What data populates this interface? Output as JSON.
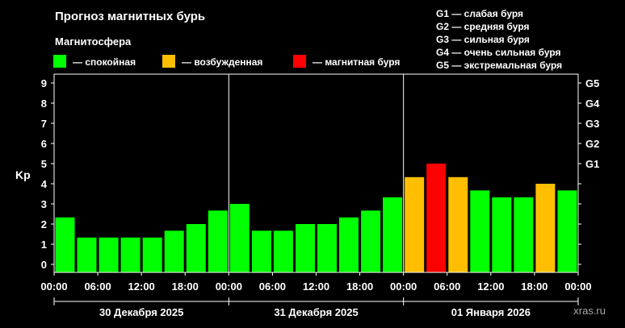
{
  "title": "Прогноз магнитных бурь",
  "subtitle": "Магнитосфера",
  "legend": [
    {
      "label": "— спокойная",
      "color": "#00ff00"
    },
    {
      "label": "— возбужденная",
      "color": "#ffbf00"
    },
    {
      "label": "— магнитная буря",
      "color": "#ff0000"
    }
  ],
  "g_scale": [
    "G1 — слабая буря",
    "G2 — средняя буря",
    "G3 — сильная буря",
    "G4 — очень сильная буря",
    "G5 — экстремальная буря"
  ],
  "watermark": "xras.ru",
  "chart_data": {
    "type": "bar",
    "ylabel": "Kp",
    "ylim": [
      0,
      9
    ],
    "y_ticks": [
      "0",
      "1",
      "2",
      "3",
      "4",
      "5",
      "6",
      "7",
      "8",
      "9"
    ],
    "right_ticks": [
      {
        "label": "G1",
        "value": 5
      },
      {
        "label": "G2",
        "value": 6
      },
      {
        "label": "G3",
        "value": 7
      },
      {
        "label": "G4",
        "value": 8
      },
      {
        "label": "G5",
        "value": 9
      }
    ],
    "x_ticks": [
      "00:00",
      "06:00",
      "12:00",
      "18:00",
      "00:00",
      "06:00",
      "12:00",
      "18:00",
      "00:00",
      "06:00",
      "12:00",
      "18:00",
      "00:00"
    ],
    "days": [
      "30 Декабря 2025",
      "31 Декабря 2025",
      "01 Января 2026"
    ],
    "values": [
      2.33,
      1.33,
      1.33,
      1.33,
      1.33,
      1.67,
      2.0,
      2.67,
      3.0,
      1.67,
      1.67,
      2.0,
      2.0,
      2.33,
      2.67,
      3.33,
      4.33,
      5.0,
      4.33,
      3.67,
      3.33,
      3.33,
      4.0,
      3.67
    ],
    "levels": [
      "quiet",
      "quiet",
      "quiet",
      "quiet",
      "quiet",
      "quiet",
      "quiet",
      "quiet",
      "quiet",
      "quiet",
      "quiet",
      "quiet",
      "quiet",
      "quiet",
      "quiet",
      "quiet",
      "active",
      "storm",
      "active",
      "quiet",
      "quiet",
      "quiet",
      "active",
      "quiet"
    ],
    "level_colors": {
      "quiet": "#00ff00",
      "active": "#ffbf00",
      "storm": "#ff0000"
    }
  }
}
